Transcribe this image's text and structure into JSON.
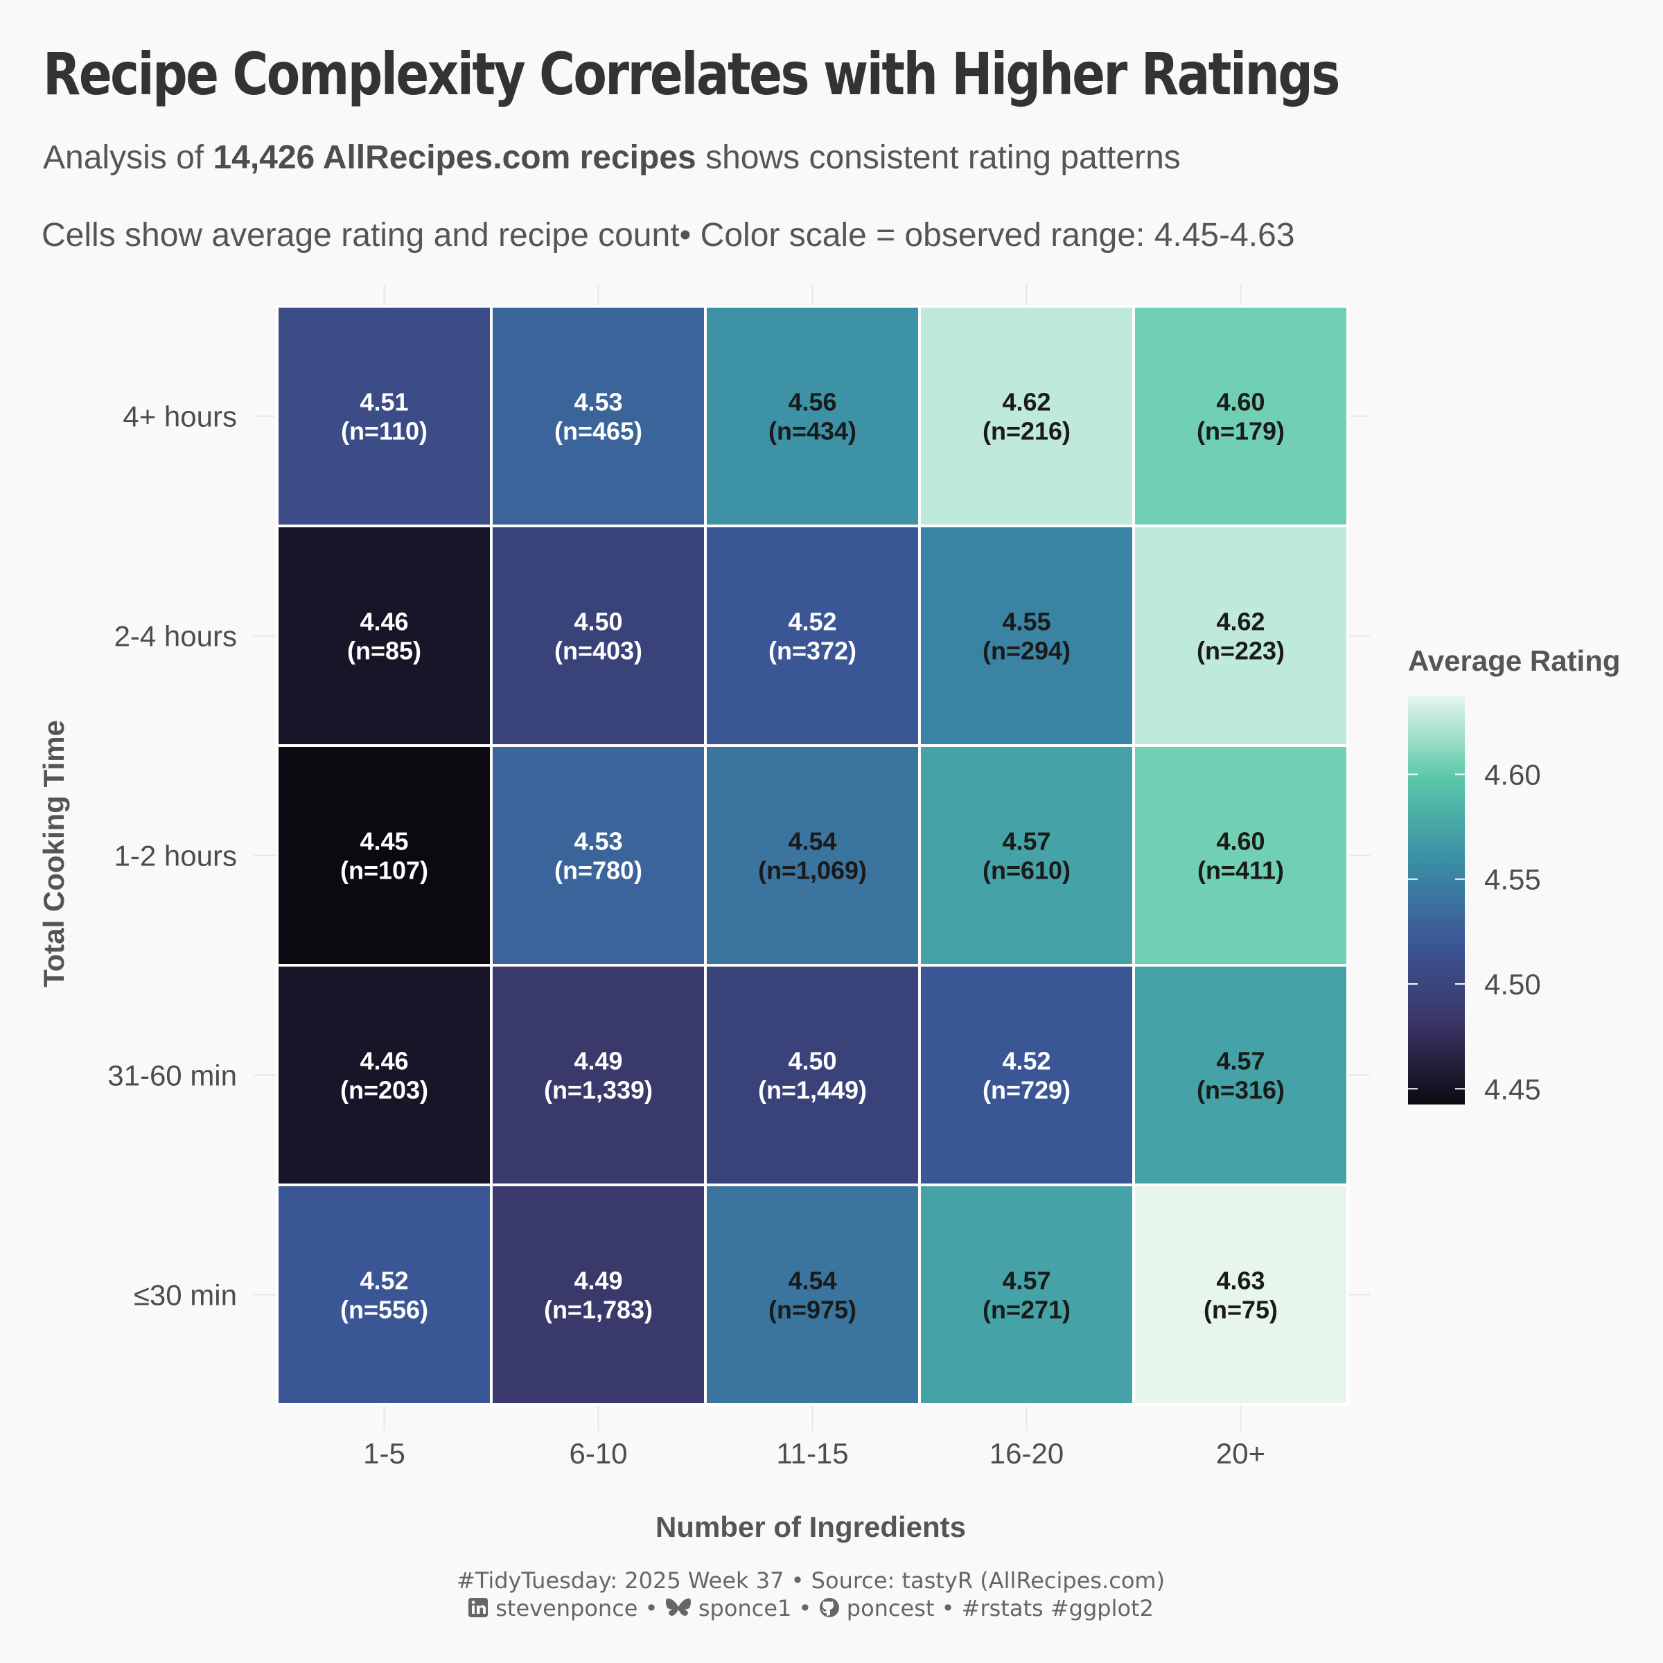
{
  "header": {
    "title": "Recipe Complexity Correlates with Higher Ratings",
    "subtitle_pre": "Analysis of ",
    "subtitle_bold": "14,426 AllRecipes.com recipes",
    "subtitle_post": " shows consistent rating patterns",
    "note": "Cells show average rating and recipe count• Color scale = observed range: 4.45-4.63"
  },
  "caption": {
    "line1": "#TidyTuesday: 2025 Week 37 • Source: tastyR (AllRecipes.com)",
    "linkedin": "stevenponce",
    "bluesky": "sponce1",
    "github": "poncest",
    "tags": "#rstats #ggplot2",
    "sep": " • ",
    "icons": [
      "linkedin-icon",
      "bluesky-butterfly-icon",
      "github-icon"
    ]
  },
  "legend": {
    "title": "Average Rating"
  },
  "chart_data": {
    "type": "heatmap",
    "xlabel": "Number of Ingredients",
    "ylabel": "Total Cooking Time",
    "x_categories": [
      "1-5",
      "6-10",
      "11-15",
      "16-20",
      "20+"
    ],
    "y_categories": [
      "4+ hours",
      "2-4 hours",
      "1-2 hours",
      "31-60 min",
      "≤30 min"
    ],
    "values": [
      [
        4.51,
        4.53,
        4.56,
        4.62,
        4.6
      ],
      [
        4.46,
        4.5,
        4.52,
        4.55,
        4.62
      ],
      [
        4.45,
        4.53,
        4.54,
        4.57,
        4.6
      ],
      [
        4.46,
        4.49,
        4.5,
        4.52,
        4.57
      ],
      [
        4.52,
        4.49,
        4.54,
        4.57,
        4.63
      ]
    ],
    "counts": [
      [
        "110",
        "465",
        "434",
        "216",
        "179"
      ],
      [
        "85",
        "403",
        "372",
        "294",
        "223"
      ],
      [
        "107",
        "780",
        "1,069",
        "610",
        "411"
      ],
      [
        "203",
        "1,339",
        "1,449",
        "729",
        "316"
      ],
      [
        "556",
        "1,783",
        "975",
        "271",
        "75"
      ]
    ],
    "color_range": [
      4.45,
      4.63
    ],
    "colorbar_ticks": [
      4.45,
      4.5,
      4.55,
      4.6
    ],
    "colorscale": [
      "#0d0910",
      "#3a3566",
      "#3b5897",
      "#3b8fa6",
      "#5ac8a8",
      "#e6f6ed"
    ],
    "grid": false,
    "legend_position": "right"
  }
}
